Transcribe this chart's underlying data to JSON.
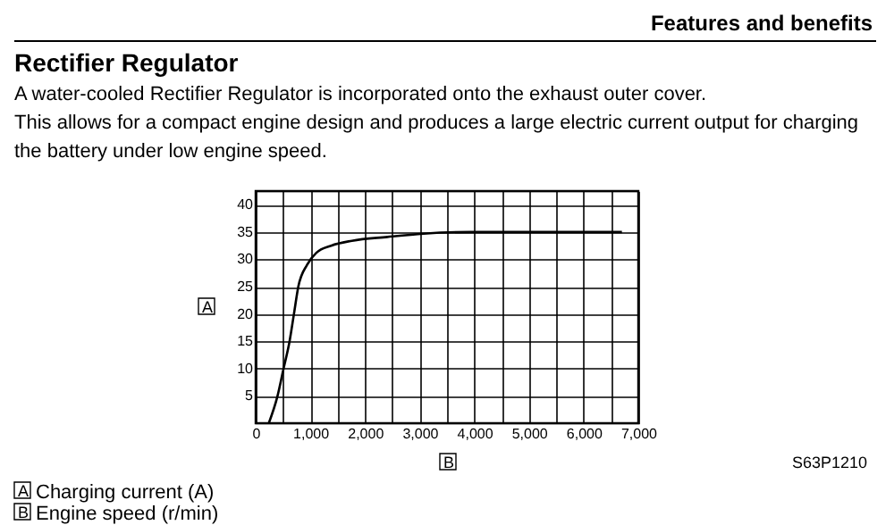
{
  "chart_data": {
    "type": "line",
    "title": "Rectifier Regulator",
    "subtitle": "A water-cooled Rectifier Regulator is incorporated onto the exhaust outer cover.\nThis allows for a compact engine design and produces a large electric current output for charging\nthe battery under low engine speed.",
    "xlabel": "B",
    "ylabel": "A",
    "annotations": [
      "Features and benefits",
      "S63P1210",
      "A  Charging current (A)",
      "B  Engine speed (r/min)"
    ],
    "series": [
      {
        "color": "#000000",
        "x": [
          240,
          400,
          510,
          620,
          700,
          780,
          940,
          1110,
          1380,
          1760,
          2410,
          3070,
          3930,
          5000,
          6000,
          6700
        ],
        "values": [
          0,
          5,
          10,
          15,
          20,
          25,
          29,
          31.2,
          32.5,
          33.4,
          34.1,
          34.7,
          35,
          35,
          35,
          35
        ]
      }
    ],
    "xlim": [
      0,
      7000
    ],
    "ylim": [
      0,
      42.5
    ],
    "xticks": [
      0,
      {
        "value": 500,
        "label": null
      },
      {
        "value": 1000,
        "label": "1,000"
      },
      {
        "value": 1500,
        "label": null
      },
      {
        "value": 2000,
        "label": "2,000"
      },
      {
        "value": 2500,
        "label": null
      },
      {
        "value": 3000,
        "label": "3,000"
      },
      {
        "value": 3500,
        "label": null
      },
      {
        "value": 4000,
        "label": "4,000"
      },
      {
        "value": 4500,
        "label": null
      },
      {
        "value": 5000,
        "label": "5,000"
      },
      {
        "value": 5500,
        "label": null
      },
      {
        "value": 6000,
        "label": "6,000"
      },
      {
        "value": 6500,
        "label": null
      },
      {
        "value": 7000,
        "label": "7,000"
      }
    ],
    "yticks": [
      5,
      10,
      15,
      20,
      25,
      30,
      35,
      40
    ],
    "grid": true,
    "marker": "none",
    "line_style": "solid"
  }
}
